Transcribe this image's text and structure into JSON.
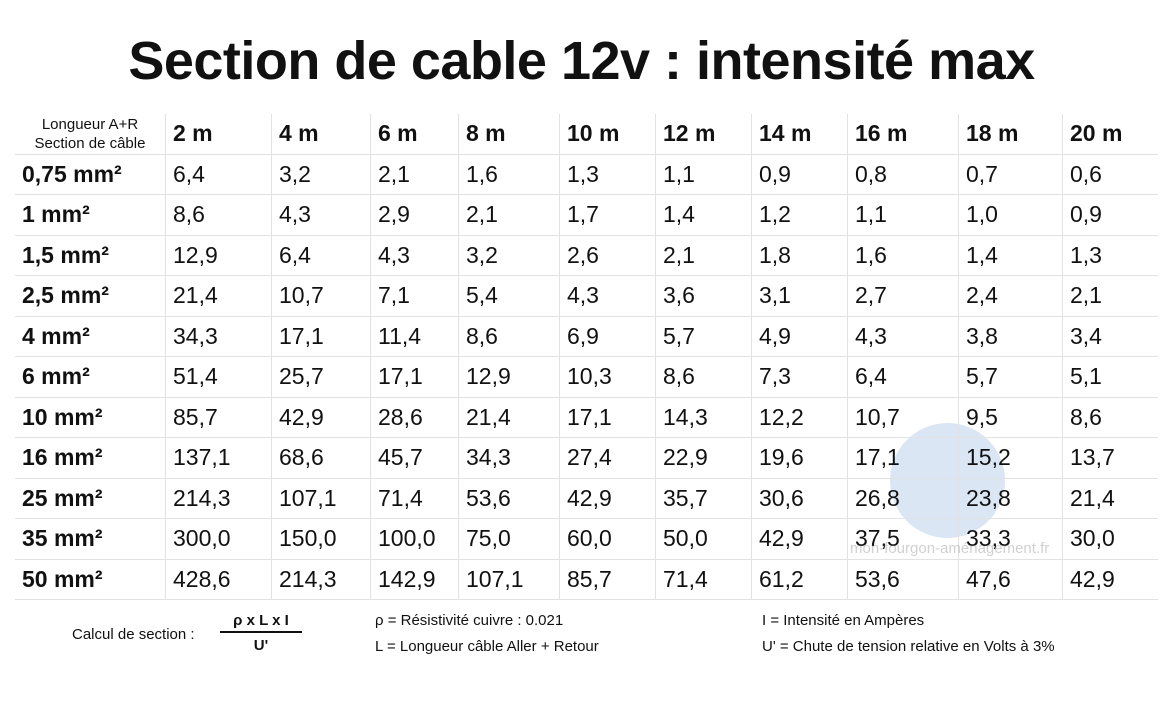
{
  "title": "Section de cable 12v : intensité max",
  "table": {
    "corner": [
      "Longueur A+R",
      "Section de câble"
    ],
    "columns": [
      "2 m",
      "4 m",
      "6 m",
      "8 m",
      "10 m",
      "12 m",
      "14 m",
      "16 m",
      "18 m",
      "20 m"
    ],
    "rows": [
      {
        "label": "0,75 mm²",
        "values": [
          "6,4",
          "3,2",
          "2,1",
          "1,6",
          "1,3",
          "1,1",
          "0,9",
          "0,8",
          "0,7",
          "0,6"
        ]
      },
      {
        "label": "1 mm²",
        "values": [
          "8,6",
          "4,3",
          "2,9",
          "2,1",
          "1,7",
          "1,4",
          "1,2",
          "1,1",
          "1,0",
          "0,9"
        ]
      },
      {
        "label": "1,5 mm²",
        "values": [
          "12,9",
          "6,4",
          "4,3",
          "3,2",
          "2,6",
          "2,1",
          "1,8",
          "1,6",
          "1,4",
          "1,3"
        ]
      },
      {
        "label": "2,5 mm²",
        "values": [
          "21,4",
          "10,7",
          "7,1",
          "5,4",
          "4,3",
          "3,6",
          "3,1",
          "2,7",
          "2,4",
          "2,1"
        ]
      },
      {
        "label": "4 mm²",
        "values": [
          "34,3",
          "17,1",
          "11,4",
          "8,6",
          "6,9",
          "5,7",
          "4,9",
          "4,3",
          "3,8",
          "3,4"
        ]
      },
      {
        "label": "6 mm²",
        "values": [
          "51,4",
          "25,7",
          "17,1",
          "12,9",
          "10,3",
          "8,6",
          "7,3",
          "6,4",
          "5,7",
          "5,1"
        ]
      },
      {
        "label": "10 mm²",
        "values": [
          "85,7",
          "42,9",
          "28,6",
          "21,4",
          "17,1",
          "14,3",
          "12,2",
          "10,7",
          "9,5",
          "8,6"
        ]
      },
      {
        "label": "16 mm²",
        "values": [
          "137,1",
          "68,6",
          "45,7",
          "34,3",
          "27,4",
          "22,9",
          "19,6",
          "17,1",
          "15,2",
          "13,7"
        ]
      },
      {
        "label": "25 mm²",
        "values": [
          "214,3",
          "107,1",
          "71,4",
          "53,6",
          "42,9",
          "35,7",
          "30,6",
          "26,8",
          "23,8",
          "21,4"
        ]
      },
      {
        "label": "35 mm²",
        "values": [
          "300,0",
          "150,0",
          "100,0",
          "75,0",
          "60,0",
          "50,0",
          "42,9",
          "37,5",
          "33,3",
          "30,0"
        ]
      },
      {
        "label": "50 mm²",
        "values": [
          "428,6",
          "214,3",
          "142,9",
          "107,1",
          "85,7",
          "71,4",
          "61,2",
          "53,6",
          "47,6",
          "42,9"
        ]
      }
    ]
  },
  "watermark": "mon-fourgon-aménagement.fr",
  "footer": {
    "formula_label": "Calcul de section :",
    "numerator": "ρ x L x I",
    "denominator": "U'",
    "notes": [
      "ρ = Résistivité cuivre : 0.021",
      "L = Longueur câble Aller + Retour",
      "I = Intensité en Ampères",
      "U' = Chute de tension relative en Volts à 3%"
    ]
  }
}
